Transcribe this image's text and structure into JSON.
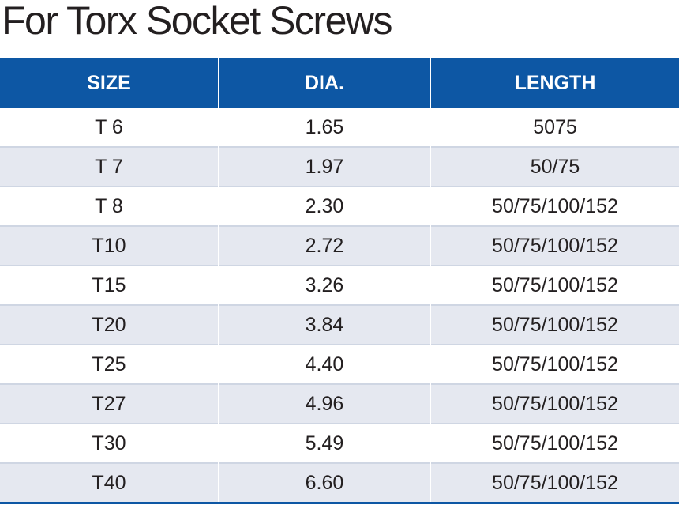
{
  "title": "For Torx Socket Screws",
  "accent_color": "#0d57a4",
  "stripe_color": "#e5e8f0",
  "table": {
    "headers": [
      "SIZE",
      "DIA.",
      "LENGTH"
    ],
    "rows": [
      [
        "T 6",
        "1.65",
        "5075"
      ],
      [
        "T 7",
        "1.97",
        "50/75"
      ],
      [
        "T 8",
        "2.30",
        "50/75/100/152"
      ],
      [
        "T10",
        "2.72",
        "50/75/100/152"
      ],
      [
        "T15",
        "3.26",
        "50/75/100/152"
      ],
      [
        "T20",
        "3.84",
        "50/75/100/152"
      ],
      [
        "T25",
        "4.40",
        "50/75/100/152"
      ],
      [
        "T27",
        "4.96",
        "50/75/100/152"
      ],
      [
        "T30",
        "5.49",
        "50/75/100/152"
      ],
      [
        "T40",
        "6.60",
        "50/75/100/152"
      ]
    ]
  }
}
